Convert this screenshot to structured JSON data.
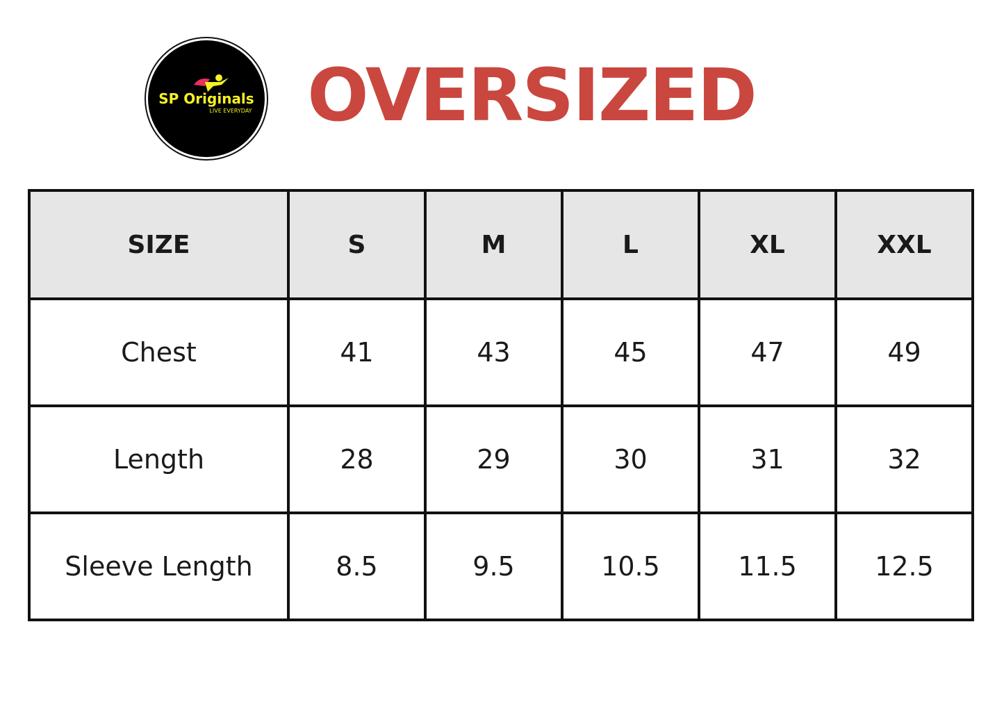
{
  "logo": {
    "brand": "SP Originals",
    "tagline": "LIVE EVERYDAY",
    "colors": {
      "background": "#000000",
      "text": "#f5f224",
      "cape": "#e8305a"
    }
  },
  "title": "OVERSIZED",
  "title_color": "#c9473e",
  "table": {
    "headers": [
      "SIZE",
      "S",
      "M",
      "L",
      "XL",
      "XXL"
    ],
    "rows": [
      [
        "Chest",
        "41",
        "43",
        "45",
        "47",
        "49"
      ],
      [
        "Length",
        "28",
        "29",
        "30",
        "31",
        "32"
      ],
      [
        "Sleeve Length",
        "8.5",
        "9.5",
        "10.5",
        "11.5",
        "12.5"
      ]
    ]
  }
}
